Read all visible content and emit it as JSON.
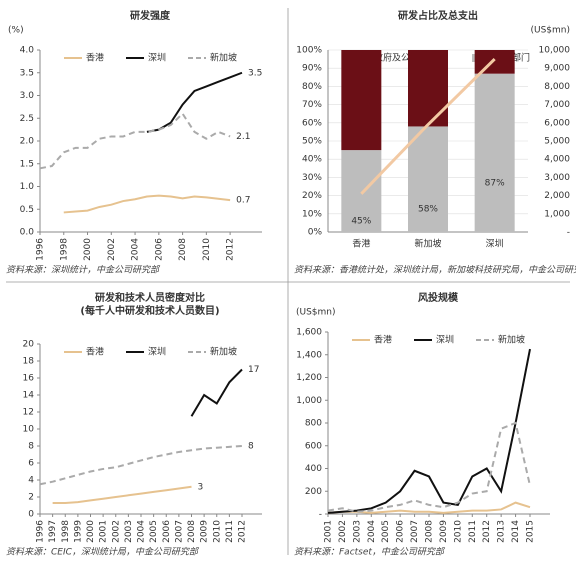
{
  "chart_data": [
    {
      "type": "line",
      "title": "研发强度",
      "y_label": "(%)",
      "x": [
        1996,
        1997,
        1998,
        1999,
        2000,
        2001,
        2002,
        2003,
        2004,
        2005,
        2006,
        2007,
        2008,
        2009,
        2010,
        2011,
        2012,
        2013
      ],
      "xlim": [
        1996,
        2013
      ],
      "xticks": [
        1996,
        1998,
        2000,
        2002,
        2004,
        2006,
        2008,
        2010,
        2012
      ],
      "ylim": [
        0,
        4
      ],
      "yticks": [
        {
          "value": 0,
          "label": "0.0"
        },
        {
          "value": 0.5,
          "label": "0.5"
        },
        {
          "value": 1,
          "label": "1.0"
        },
        {
          "value": 1.5,
          "label": "1.5"
        },
        {
          "value": 2,
          "label": "2.0"
        },
        {
          "value": 2.5,
          "label": "2.5"
        },
        {
          "value": 3,
          "label": "3.0"
        },
        {
          "value": 3.5,
          "label": "3.5"
        },
        {
          "value": 4,
          "label": "4.0"
        }
      ],
      "series": [
        {
          "name": "香港",
          "color": "#e6c28f",
          "dash": false,
          "end_label": "0.7",
          "values": [
            null,
            null,
            0.43,
            0.45,
            0.47,
            0.55,
            0.6,
            0.68,
            0.72,
            0.78,
            0.8,
            0.78,
            0.74,
            0.78,
            0.76,
            0.73,
            0.7,
            null
          ]
        },
        {
          "name": "深圳",
          "color": "#111111",
          "dash": false,
          "end_label": "3.5",
          "values": [
            null,
            null,
            null,
            null,
            null,
            null,
            null,
            null,
            null,
            2.2,
            2.25,
            2.4,
            2.8,
            3.1,
            3.2,
            3.3,
            3.4,
            3.5
          ]
        },
        {
          "name": "新加坡",
          "color": "#aaaaaa",
          "dash": true,
          "end_label": "2.1",
          "values": [
            1.4,
            1.45,
            1.75,
            1.85,
            1.85,
            2.05,
            2.1,
            2.1,
            2.2,
            2.2,
            2.25,
            2.35,
            2.6,
            2.2,
            2.05,
            2.2,
            2.1,
            null
          ]
        }
      ],
      "source": "资料来源：深圳统计，中金公司研究部"
    },
    {
      "type": "bar",
      "stacked": true,
      "title": "研发占比及总支出",
      "y2_label": "(US$mn)",
      "categories": [
        "香港",
        "新加坡",
        "深圳"
      ],
      "ylim": [
        0,
        100
      ],
      "yticks": [
        {
          "value": 0,
          "label": "0%"
        },
        {
          "value": 10,
          "label": "10%"
        },
        {
          "value": 20,
          "label": "20%"
        },
        {
          "value": 30,
          "label": "30%"
        },
        {
          "value": 40,
          "label": "40%"
        },
        {
          "value": 50,
          "label": "50%"
        },
        {
          "value": 60,
          "label": "60%"
        },
        {
          "value": 70,
          "label": "70%"
        },
        {
          "value": 80,
          "label": "80%"
        },
        {
          "value": 90,
          "label": "90%"
        },
        {
          "value": 100,
          "label": "100%"
        }
      ],
      "y2lim": [
        0,
        10000
      ],
      "y2ticks": [
        {
          "value": 0,
          "label": "-"
        },
        {
          "value": 1000,
          "label": "1,000"
        },
        {
          "value": 2000,
          "label": "2,000"
        },
        {
          "value": 3000,
          "label": "3,000"
        },
        {
          "value": 4000,
          "label": "4,000"
        },
        {
          "value": 5000,
          "label": "5,000"
        },
        {
          "value": 6000,
          "label": "6,000"
        },
        {
          "value": 7000,
          "label": "7,000"
        },
        {
          "value": 8000,
          "label": "8,000"
        },
        {
          "value": 9000,
          "label": "9,000"
        },
        {
          "value": 10000,
          "label": "10,000"
        }
      ],
      "series": [
        {
          "name": "政府及公共部门",
          "color": "#6b0f16",
          "values": [
            55,
            42,
            13
          ]
        },
        {
          "name": "私人部门",
          "color": "#bdbdbd",
          "values": [
            45,
            58,
            87
          ],
          "value_labels": [
            "45%",
            "58%",
            "87%"
          ]
        },
        {
          "type": "line",
          "axis": "y2",
          "color": "#f2c9a3",
          "values": [
            2100,
            5900,
            9500
          ]
        }
      ],
      "source": "资料来源：香港统计处，深圳统计局，新加坡科技研究局，中金公司研究部"
    },
    {
      "type": "line",
      "title": "研发和技术人员密度对比",
      "subtitle": "(每千人中研发和技术人员数目)",
      "x": [
        1996,
        1997,
        1998,
        1999,
        2000,
        2001,
        2002,
        2003,
        2004,
        2005,
        2006,
        2007,
        2008,
        2009,
        2010,
        2011,
        2012
      ],
      "xlim": [
        1996,
        2012
      ],
      "xticks": [
        1996,
        1997,
        1998,
        1999,
        2000,
        2001,
        2002,
        2003,
        2004,
        2005,
        2006,
        2007,
        2008,
        2009,
        2010,
        2011,
        2012
      ],
      "ylim": [
        0,
        20
      ],
      "yticks": [
        0,
        2,
        4,
        6,
        8,
        10,
        12,
        14,
        16,
        18,
        20
      ],
      "series": [
        {
          "name": "香港",
          "color": "#e6c28f",
          "dash": false,
          "end_label": "3",
          "values": [
            null,
            1.3,
            1.3,
            1.4,
            1.6,
            1.8,
            2.0,
            2.2,
            2.4,
            2.6,
            2.8,
            3.0,
            3.2,
            null,
            null,
            null,
            null
          ]
        },
        {
          "name": "深圳",
          "color": "#111111",
          "dash": false,
          "end_label": "17",
          "values": [
            null,
            null,
            null,
            null,
            null,
            null,
            null,
            null,
            null,
            null,
            null,
            null,
            11.5,
            14,
            13,
            15.5,
            17
          ]
        },
        {
          "name": "新加坡",
          "color": "#aaaaaa",
          "dash": true,
          "end_label": "8",
          "values": [
            3.5,
            3.8,
            4.2,
            4.6,
            5.0,
            5.3,
            5.5,
            5.9,
            6.3,
            6.7,
            7.0,
            7.3,
            7.5,
            7.7,
            7.8,
            7.9,
            8.0
          ]
        }
      ],
      "source": "资料来源：CEIC，深圳统计局，中金公司研究部"
    },
    {
      "type": "line",
      "title": "风投规模",
      "y_label": "(US$mn)",
      "x": [
        2001,
        2002,
        2003,
        2004,
        2005,
        2006,
        2007,
        2008,
        2009,
        2010,
        2011,
        2012,
        2013,
        2014,
        2015
      ],
      "xlim": [
        2001,
        2015
      ],
      "xticks": [
        2001,
        2002,
        2003,
        2004,
        2005,
        2006,
        2007,
        2008,
        2009,
        2010,
        2011,
        2012,
        2013,
        2014,
        2015
      ],
      "ylim": [
        0,
        1600
      ],
      "yticks": [
        {
          "value": 0,
          "label": "-"
        },
        200,
        400,
        600,
        800,
        {
          "value": 1000,
          "label": "1,000"
        },
        {
          "value": 1200,
          "label": "1,200"
        },
        {
          "value": 1400,
          "label": "1,400"
        },
        {
          "value": 1600,
          "label": "1,600"
        }
      ],
      "series": [
        {
          "name": "香港",
          "color": "#e6c28f",
          "dash": false,
          "values": [
            10,
            20,
            20,
            10,
            20,
            30,
            20,
            20,
            10,
            20,
            30,
            30,
            40,
            100,
            60
          ]
        },
        {
          "name": "深圳",
          "color": "#111111",
          "dash": false,
          "values": [
            10,
            20,
            30,
            50,
            100,
            200,
            380,
            330,
            100,
            80,
            330,
            400,
            200,
            800,
            1450
          ]
        },
        {
          "name": "新加坡",
          "color": "#aaaaaa",
          "dash": true,
          "values": [
            30,
            50,
            20,
            30,
            60,
            80,
            120,
            80,
            60,
            100,
            180,
            200,
            750,
            800,
            250
          ]
        }
      ],
      "source": "资料来源：Factset，中金公司研究部"
    }
  ]
}
